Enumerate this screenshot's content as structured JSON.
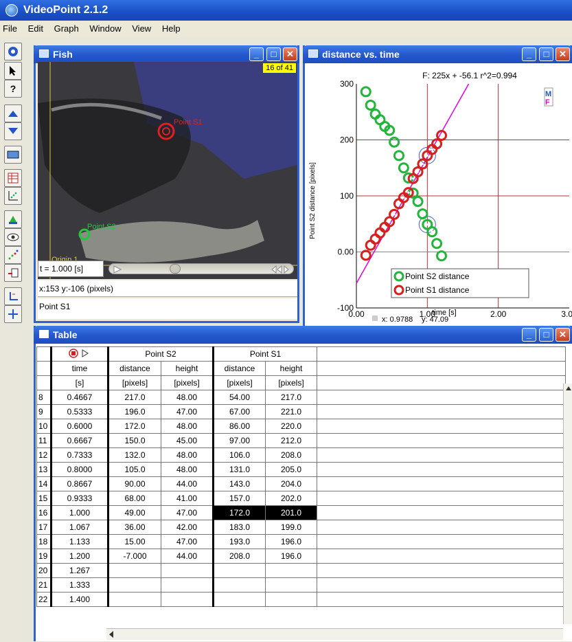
{
  "app": {
    "title": "VideoPoint 2.1.2"
  },
  "menu": [
    "File",
    "Edit",
    "Graph",
    "Window",
    "View",
    "Help"
  ],
  "video": {
    "title": "Fish",
    "frame_counter": "16 of 41",
    "point_s1_label": "Point S1",
    "point_s2_label": "Point S2",
    "origin_label": "Origin 1",
    "time_readout": "t = 1.000 [s]",
    "coord_readout": "x:153  y:-106 (pixels)",
    "selected_point": "Point S1"
  },
  "graph": {
    "title": "distance vs. time",
    "fit_label": "F: 225x + -56.1  r^2=0.994",
    "readout_x": "x: 0.9788",
    "readout_y": "y: 47.09",
    "badge_m": "M",
    "badge_f": "F"
  },
  "chart_data": {
    "type": "scatter",
    "xlabel": "time [s]",
    "ylabel": "Point S2 distance [pixels]",
    "xlim": [
      0,
      3
    ],
    "ylim": [
      -100,
      300
    ],
    "xticks": [
      "0.00",
      "1.00",
      "2.00",
      "3.00"
    ],
    "yticks": [
      "-100",
      "0.00",
      "100",
      "200",
      "300"
    ],
    "legend_position": "bottom-center",
    "series": [
      {
        "name": "Point S2 distance",
        "color": "#22b53a",
        "x": [
          0.1333,
          0.2,
          0.2667,
          0.3333,
          0.4,
          0.4667,
          0.5333,
          0.6,
          0.6667,
          0.7333,
          0.8,
          0.8667,
          0.9333,
          1.0,
          1.067,
          1.133,
          1.2
        ],
        "y": [
          286,
          262,
          246,
          236,
          224,
          217,
          196,
          172,
          150,
          132,
          105,
          90,
          68,
          49,
          36,
          15,
          -7
        ]
      },
      {
        "name": "Point S1 distance",
        "color": "#d62020",
        "x": [
          0.1333,
          0.2,
          0.2667,
          0.3333,
          0.4,
          0.4667,
          0.5333,
          0.6,
          0.6667,
          0.7333,
          0.8,
          0.8667,
          0.9333,
          1.0,
          1.067,
          1.133,
          1.2
        ],
        "y": [
          -6,
          12,
          23,
          34,
          44,
          54,
          67,
          86,
          97,
          106,
          131,
          143,
          157,
          172,
          183,
          193,
          208
        ]
      }
    ],
    "fit_line": {
      "slope": 225,
      "intercept": -56.1,
      "color": "#e000e0"
    },
    "circled_points": [
      {
        "x": 1.0,
        "y": 49
      },
      {
        "x": 1.0,
        "y": 172
      }
    ]
  },
  "table": {
    "title": "Table",
    "group_s2": "Point S2",
    "group_s1": "Point S1",
    "col_time": "time",
    "col_time_unit": "[s]",
    "col_distance": "distance",
    "col_height": "height",
    "col_pixels": "[pixels]",
    "rows": [
      [
        "8",
        "0.4667",
        "217.0",
        "48.00",
        "54.00",
        "217.0"
      ],
      [
        "9",
        "0.5333",
        "196.0",
        "47.00",
        "67.00",
        "221.0"
      ],
      [
        "10",
        "0.6000",
        "172.0",
        "48.00",
        "86.00",
        "220.0"
      ],
      [
        "11",
        "0.6667",
        "150.0",
        "45.00",
        "97.00",
        "212.0"
      ],
      [
        "12",
        "0.7333",
        "132.0",
        "48.00",
        "106.0",
        "208.0"
      ],
      [
        "13",
        "0.8000",
        "105.0",
        "48.00",
        "131.0",
        "205.0"
      ],
      [
        "14",
        "0.8667",
        "90.00",
        "44.00",
        "143.0",
        "204.0"
      ],
      [
        "15",
        "0.9333",
        "68.00",
        "41.00",
        "157.0",
        "202.0"
      ],
      [
        "16",
        "1.000",
        "49.00",
        "47.00",
        "172.0",
        "201.0"
      ],
      [
        "17",
        "1.067",
        "36.00",
        "42.00",
        "183.0",
        "199.0"
      ],
      [
        "18",
        "1.133",
        "15.00",
        "47.00",
        "193.0",
        "196.0"
      ],
      [
        "19",
        "1.200",
        "-7.000",
        "44.00",
        "208.0",
        "196.0"
      ],
      [
        "20",
        "1.267",
        "",
        "",
        "",
        ""
      ],
      [
        "21",
        "1.333",
        "",
        "",
        "",
        ""
      ],
      [
        "22",
        "1.400",
        "",
        "",
        "",
        ""
      ]
    ],
    "selected_row": "16"
  },
  "window_buttons": {
    "minimize": "_",
    "maximize": "□",
    "close": "✕"
  }
}
